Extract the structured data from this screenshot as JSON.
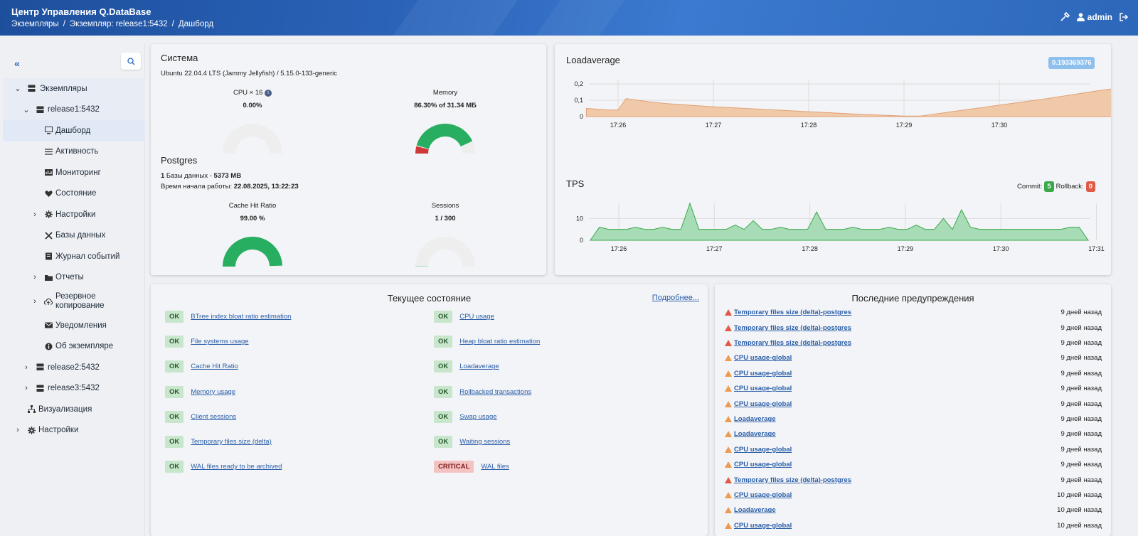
{
  "header": {
    "title": "Центр Управления Q.DataBase",
    "breadcrumb": [
      "Экземпляры",
      "/",
      "Экземпляр: release1:5432",
      "/",
      "Дашборд"
    ],
    "user": "admin"
  },
  "sidebar": {
    "items": [
      {
        "label": "Экземпляры"
      },
      {
        "label": "release1:5432"
      },
      {
        "label": "Дашборд"
      },
      {
        "label": "Активность"
      },
      {
        "label": "Мониторинг"
      },
      {
        "label": "Состояние"
      },
      {
        "label": "Настройки"
      },
      {
        "label": "Базы данных"
      },
      {
        "label": "Журнал событий"
      },
      {
        "label": "Отчеты"
      },
      {
        "label": "Резервное копирование"
      },
      {
        "label": "Уведомления"
      },
      {
        "label": "Об экземпляре"
      },
      {
        "label": "release2:5432"
      },
      {
        "label": "release3:5432"
      },
      {
        "label": "Визуализация"
      },
      {
        "label": "Настройки"
      }
    ]
  },
  "system": {
    "title": "Система",
    "os": "Ubuntu 22.04.4 LTS (Jammy Jellyfish) / 5.15.0-133-generic",
    "cpu_label": "CPU × 16",
    "cpu_value": "0.00%",
    "cpu_fraction": 0.0,
    "mem_label": "Memory",
    "mem_value": "86.30% of 31.34 МБ",
    "mem_fraction": 0.863
  },
  "postgres": {
    "title": "Postgres",
    "db_count": "1",
    "db_text": " Базы данных - ",
    "db_size": "5373 MB",
    "start_label": "Время начала работы: ",
    "start_value": "22.08.2025, 13:22:23",
    "chr_label": "Cache Hit Ratio",
    "chr_value": "99.00 %",
    "chr_fraction": 0.99,
    "sess_label": "Sessions",
    "sess_value": "1 / 300",
    "sess_fraction": 0.0033
  },
  "loadavg": {
    "title": "Loadaverage",
    "current": "0.193369376"
  },
  "tps": {
    "title": "TPS",
    "commit_label": "Commit:",
    "commit_value": "5",
    "rollback_label": "Rollback:",
    "rollback_value": "0"
  },
  "chart_data": [
    {
      "type": "area",
      "title": "Loadaverage",
      "x": [
        "17:25:40",
        "17:25:55",
        "17:26:00",
        "17:26:05",
        "17:26:20",
        "17:26:30",
        "17:27:00",
        "17:27:30",
        "17:28:00",
        "17:28:30",
        "17:29:00",
        "17:29:10",
        "17:29:30",
        "17:30:00",
        "17:30:30",
        "17:31:00",
        "17:31:30"
      ],
      "y": [
        0.05,
        0.04,
        0.04,
        0.11,
        0.09,
        0.08,
        0.06,
        0.045,
        0.03,
        0.015,
        0.003,
        0.003,
        0.03,
        0.07,
        0.11,
        0.155,
        0.195
      ],
      "ylim": [
        0,
        0.2
      ],
      "yticks": [
        "0",
        "0,1",
        "0,2"
      ],
      "xticks": [
        "17:26",
        "17:27",
        "17:28",
        "17:29",
        "17:30"
      ],
      "color": "#f0c9a8"
    },
    {
      "type": "area",
      "title": "TPS",
      "series": [
        {
          "name": "Commit",
          "values": [
            0,
            6,
            5,
            5,
            5,
            6,
            5,
            5,
            6,
            5,
            5,
            17,
            5,
            5,
            5,
            5,
            7,
            5,
            9,
            5,
            5,
            6,
            5,
            5,
            5,
            13,
            5,
            5,
            5,
            6,
            5,
            5,
            5,
            6,
            5,
            5,
            7,
            5,
            5,
            10,
            5,
            14,
            6,
            5,
            5,
            5,
            5,
            5,
            5,
            5,
            5,
            5,
            5,
            6,
            6,
            0
          ]
        }
      ],
      "ylim": [
        0,
        15
      ],
      "yticks": [
        "0",
        "10"
      ],
      "xticks": [
        "17:26",
        "17:27",
        "17:28",
        "17:29",
        "17:30",
        "17:31"
      ],
      "color": "#a8dcb6"
    }
  ],
  "current_state": {
    "title": "Текущее состояние",
    "more": "Подробнее...",
    "left": [
      {
        "status": "OK",
        "name": "BTree index bloat ratio estimation"
      },
      {
        "status": "OK",
        "name": "File systems usage"
      },
      {
        "status": "OK",
        "name": "Cache Hit Ratio"
      },
      {
        "status": "OK",
        "name": "Memory usage"
      },
      {
        "status": "OK",
        "name": "Client sessions"
      },
      {
        "status": "OK",
        "name": "Temporary files size (delta)"
      },
      {
        "status": "OK",
        "name": "WAL files ready to be archived"
      }
    ],
    "right": [
      {
        "status": "OK",
        "name": "CPU usage"
      },
      {
        "status": "OK",
        "name": "Heap bloat ratio estimation"
      },
      {
        "status": "OK",
        "name": "Loadaverage"
      },
      {
        "status": "OK",
        "name": "Rollbacked transactions"
      },
      {
        "status": "OK",
        "name": "Swap usage"
      },
      {
        "status": "OK",
        "name": "Waiting sessions"
      },
      {
        "status": "CRITICAL",
        "name": "WAL files"
      }
    ]
  },
  "warnings": {
    "title": "Последние предупреждения",
    "items": [
      {
        "level": "red",
        "name": "Temporary files size (delta)-postgres",
        "time": "9 дней назад"
      },
      {
        "level": "red",
        "name": "Temporary files size (delta)-postgres",
        "time": "9 дней назад"
      },
      {
        "level": "red",
        "name": "Temporary files size (delta)-postgres",
        "time": "9 дней назад"
      },
      {
        "level": "orange",
        "name": "CPU usage-global",
        "time": "9 дней назад"
      },
      {
        "level": "orange",
        "name": "CPU usage-global",
        "time": "9 дней назад"
      },
      {
        "level": "orange",
        "name": "CPU usage-global",
        "time": "9 дней назад"
      },
      {
        "level": "orange",
        "name": "CPU usage-global",
        "time": "9 дней назад"
      },
      {
        "level": "orange",
        "name": "Loadaverage",
        "time": "9 дней назад"
      },
      {
        "level": "orange",
        "name": "Loadaverage",
        "time": "9 дней назад"
      },
      {
        "level": "orange",
        "name": "CPU usage-global",
        "time": "9 дней назад"
      },
      {
        "level": "orange",
        "name": "CPU usage-global",
        "time": "9 дней назад"
      },
      {
        "level": "red",
        "name": "Temporary files size (delta)-postgres",
        "time": "9 дней назад"
      },
      {
        "level": "orange",
        "name": "CPU usage-global",
        "time": "10 дней назад"
      },
      {
        "level": "orange",
        "name": "Loadaverage",
        "time": "10 дней назад"
      },
      {
        "level": "orange",
        "name": "CPU usage-global",
        "time": "10 дней назад"
      }
    ]
  },
  "colors": {
    "green": "#27ae60",
    "red": "#d0393a",
    "gauge_bg": "#eeeeee",
    "accent": "#2b63b8"
  }
}
